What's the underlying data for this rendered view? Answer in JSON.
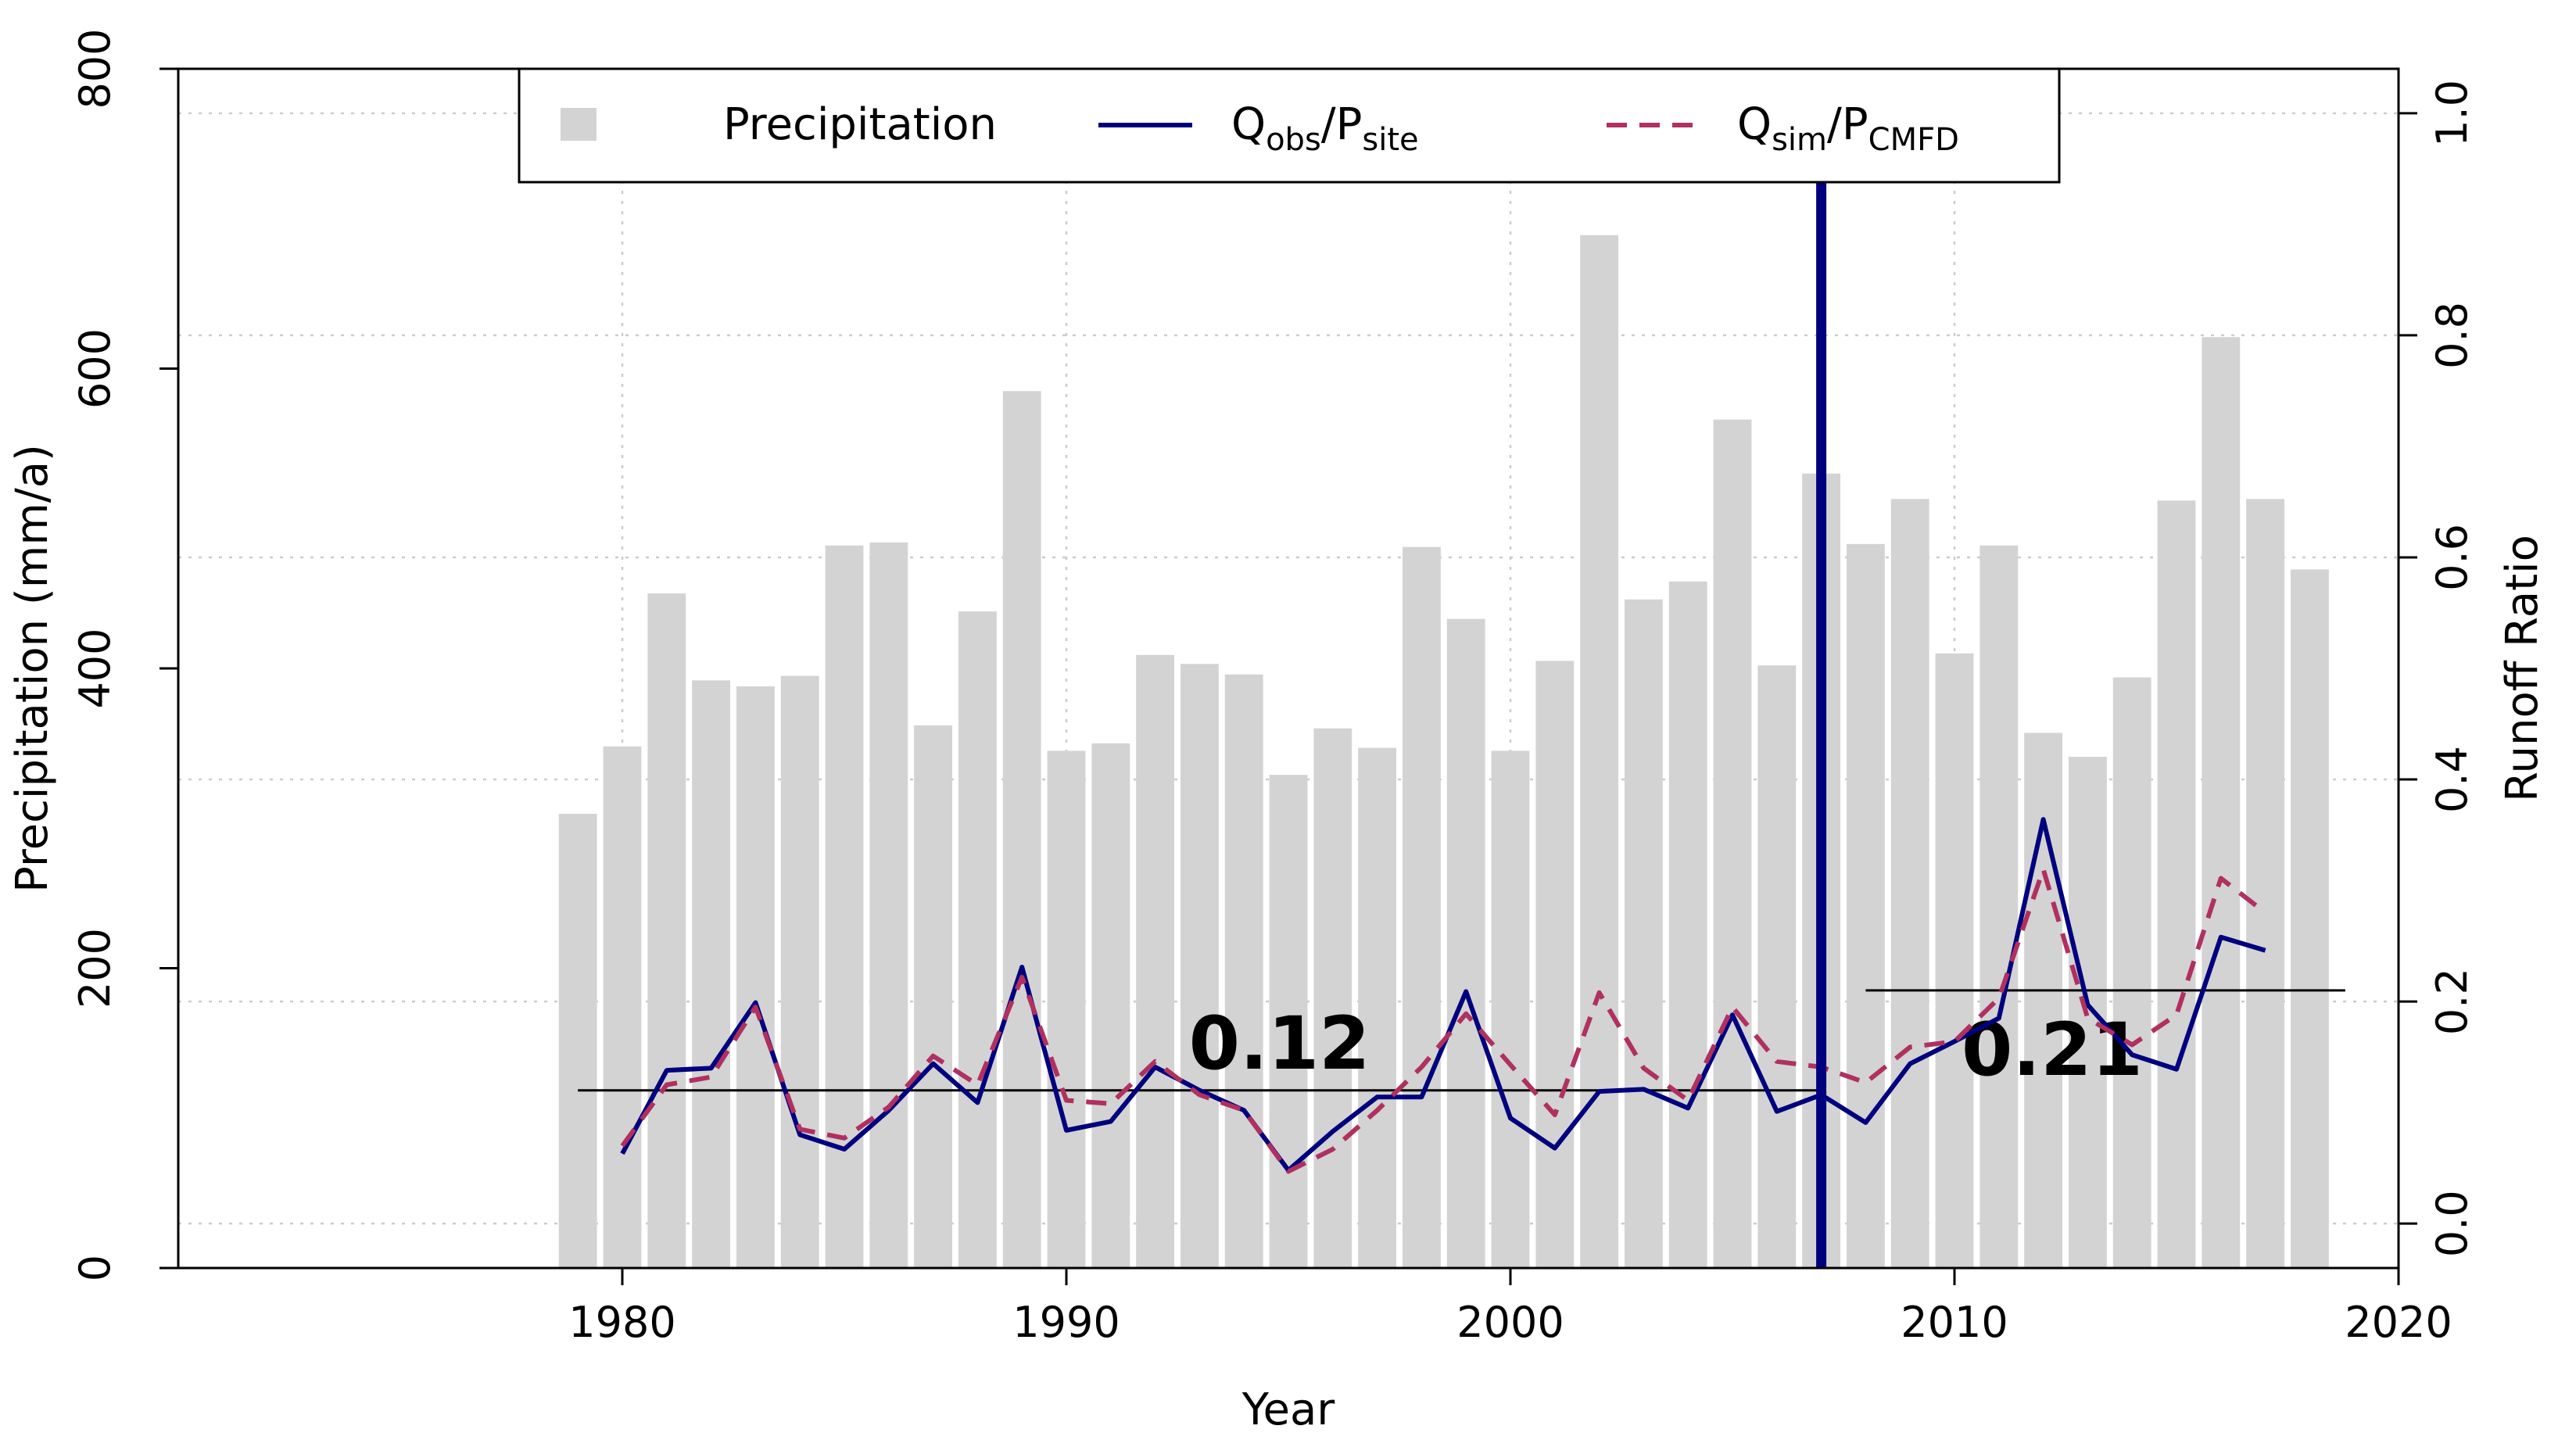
{
  "chart_data": {
    "type": "bar",
    "xlabel": "Year",
    "ylabel_left": "Precipitation (mm/a)",
    "ylabel_right": "Runoff Ratio",
    "xlim": [
      1970,
      2020
    ],
    "ylim_left": [
      0,
      800
    ],
    "ylim_right": [
      -0.04,
      1.04
    ],
    "x_ticks": [
      1980,
      1990,
      2000,
      2010,
      2020
    ],
    "y_left_ticks": [
      0,
      200,
      400,
      600,
      800
    ],
    "y_right_ticks": [
      "0.0",
      "0.2",
      "0.4",
      "0.6",
      "0.8",
      "1.0"
    ],
    "grid": true,
    "years": [
      1979,
      1980,
      1981,
      1982,
      1983,
      1984,
      1985,
      1986,
      1987,
      1988,
      1989,
      1990,
      1991,
      1992,
      1993,
      1994,
      1995,
      1996,
      1997,
      1998,
      1999,
      2000,
      2001,
      2002,
      2003,
      2004,
      2005,
      2006,
      2007,
      2008,
      2009,
      2010,
      2011,
      2012,
      2013,
      2014,
      2015,
      2016,
      2017,
      2018
    ],
    "series": [
      {
        "name": "Precipitation",
        "axis": "left",
        "style": "bar",
        "color": "#d3d3d3",
        "values": [
          303,
          348,
          450,
          392,
          388,
          395,
          482,
          484,
          362,
          438,
          585,
          345,
          350,
          409,
          403,
          396,
          329,
          360,
          347,
          481,
          433,
          345,
          405,
          689,
          446,
          458,
          566,
          402,
          530,
          483,
          513,
          410,
          482,
          357,
          341,
          394,
          512,
          621,
          513,
          466
        ]
      },
      {
        "name": "Q_obs/P_site",
        "axis": "right",
        "style": "solid",
        "color": "#00007f",
        "years": [
          1980,
          1981,
          1982,
          1983,
          1984,
          1985,
          1986,
          1987,
          1988,
          1989,
          1990,
          1991,
          1992,
          1993,
          1994,
          1995,
          1996,
          1997,
          1998,
          1999,
          2000,
          2001,
          2002,
          2003,
          2004,
          2005,
          2006,
          2007,
          2008,
          2009,
          2010,
          2011,
          2012,
          2013,
          2014,
          2015,
          2016,
          2017
        ],
        "values": [
          0.063,
          0.138,
          0.14,
          0.199,
          0.08,
          0.067,
          0.102,
          0.144,
          0.109,
          0.231,
          0.084,
          0.092,
          0.141,
          0.12,
          0.102,
          0.048,
          0.083,
          0.114,
          0.114,
          0.209,
          0.095,
          0.068,
          0.119,
          0.121,
          0.104,
          0.188,
          0.101,
          0.116,
          0.091,
          0.144,
          0.164,
          0.185,
          0.364,
          0.197,
          0.152,
          0.139,
          0.258,
          0.246
        ]
      },
      {
        "name": "Q_sim/P_CMFD",
        "axis": "right",
        "style": "dashed",
        "color": "#b03060",
        "years": [
          1980,
          1981,
          1982,
          1983,
          1984,
          1985,
          1986,
          1987,
          1988,
          1989,
          1990,
          1991,
          1992,
          1993,
          1994,
          1995,
          1996,
          1997,
          1998,
          1999,
          2000,
          2001,
          2002,
          2003,
          2004,
          2005,
          2006,
          2007,
          2008,
          2009,
          2010,
          2011,
          2012,
          2013,
          2014,
          2015,
          2016,
          2017
        ],
        "values": [
          0.07,
          0.125,
          0.132,
          0.195,
          0.085,
          0.077,
          0.105,
          0.151,
          0.125,
          0.222,
          0.111,
          0.108,
          0.146,
          0.116,
          0.102,
          0.047,
          0.067,
          0.102,
          0.141,
          0.189,
          0.143,
          0.098,
          0.208,
          0.14,
          0.111,
          0.195,
          0.146,
          0.141,
          0.127,
          0.159,
          0.164,
          0.203,
          0.319,
          0.185,
          0.161,
          0.188,
          0.311,
          0.28
        ]
      }
    ],
    "mean_lines": [
      {
        "label": "0.12",
        "value": 0.12,
        "from_year": 1979,
        "to_year": 2007
      },
      {
        "label": "0.21",
        "value": 0.21,
        "from_year": 2008,
        "to_year": 2018
      }
    ],
    "change_point": {
      "year": 2007,
      "color": "#00007f"
    },
    "legend": {
      "position": "top-center",
      "entries": [
        {
          "main": "Precipitation"
        },
        {
          "main": "Q",
          "sub1": "obs",
          "mid": "/P",
          "sub2": "site"
        },
        {
          "main": "Q",
          "sub1": "sim",
          "mid": "/P",
          "sub2": "CMFD"
        }
      ]
    }
  }
}
